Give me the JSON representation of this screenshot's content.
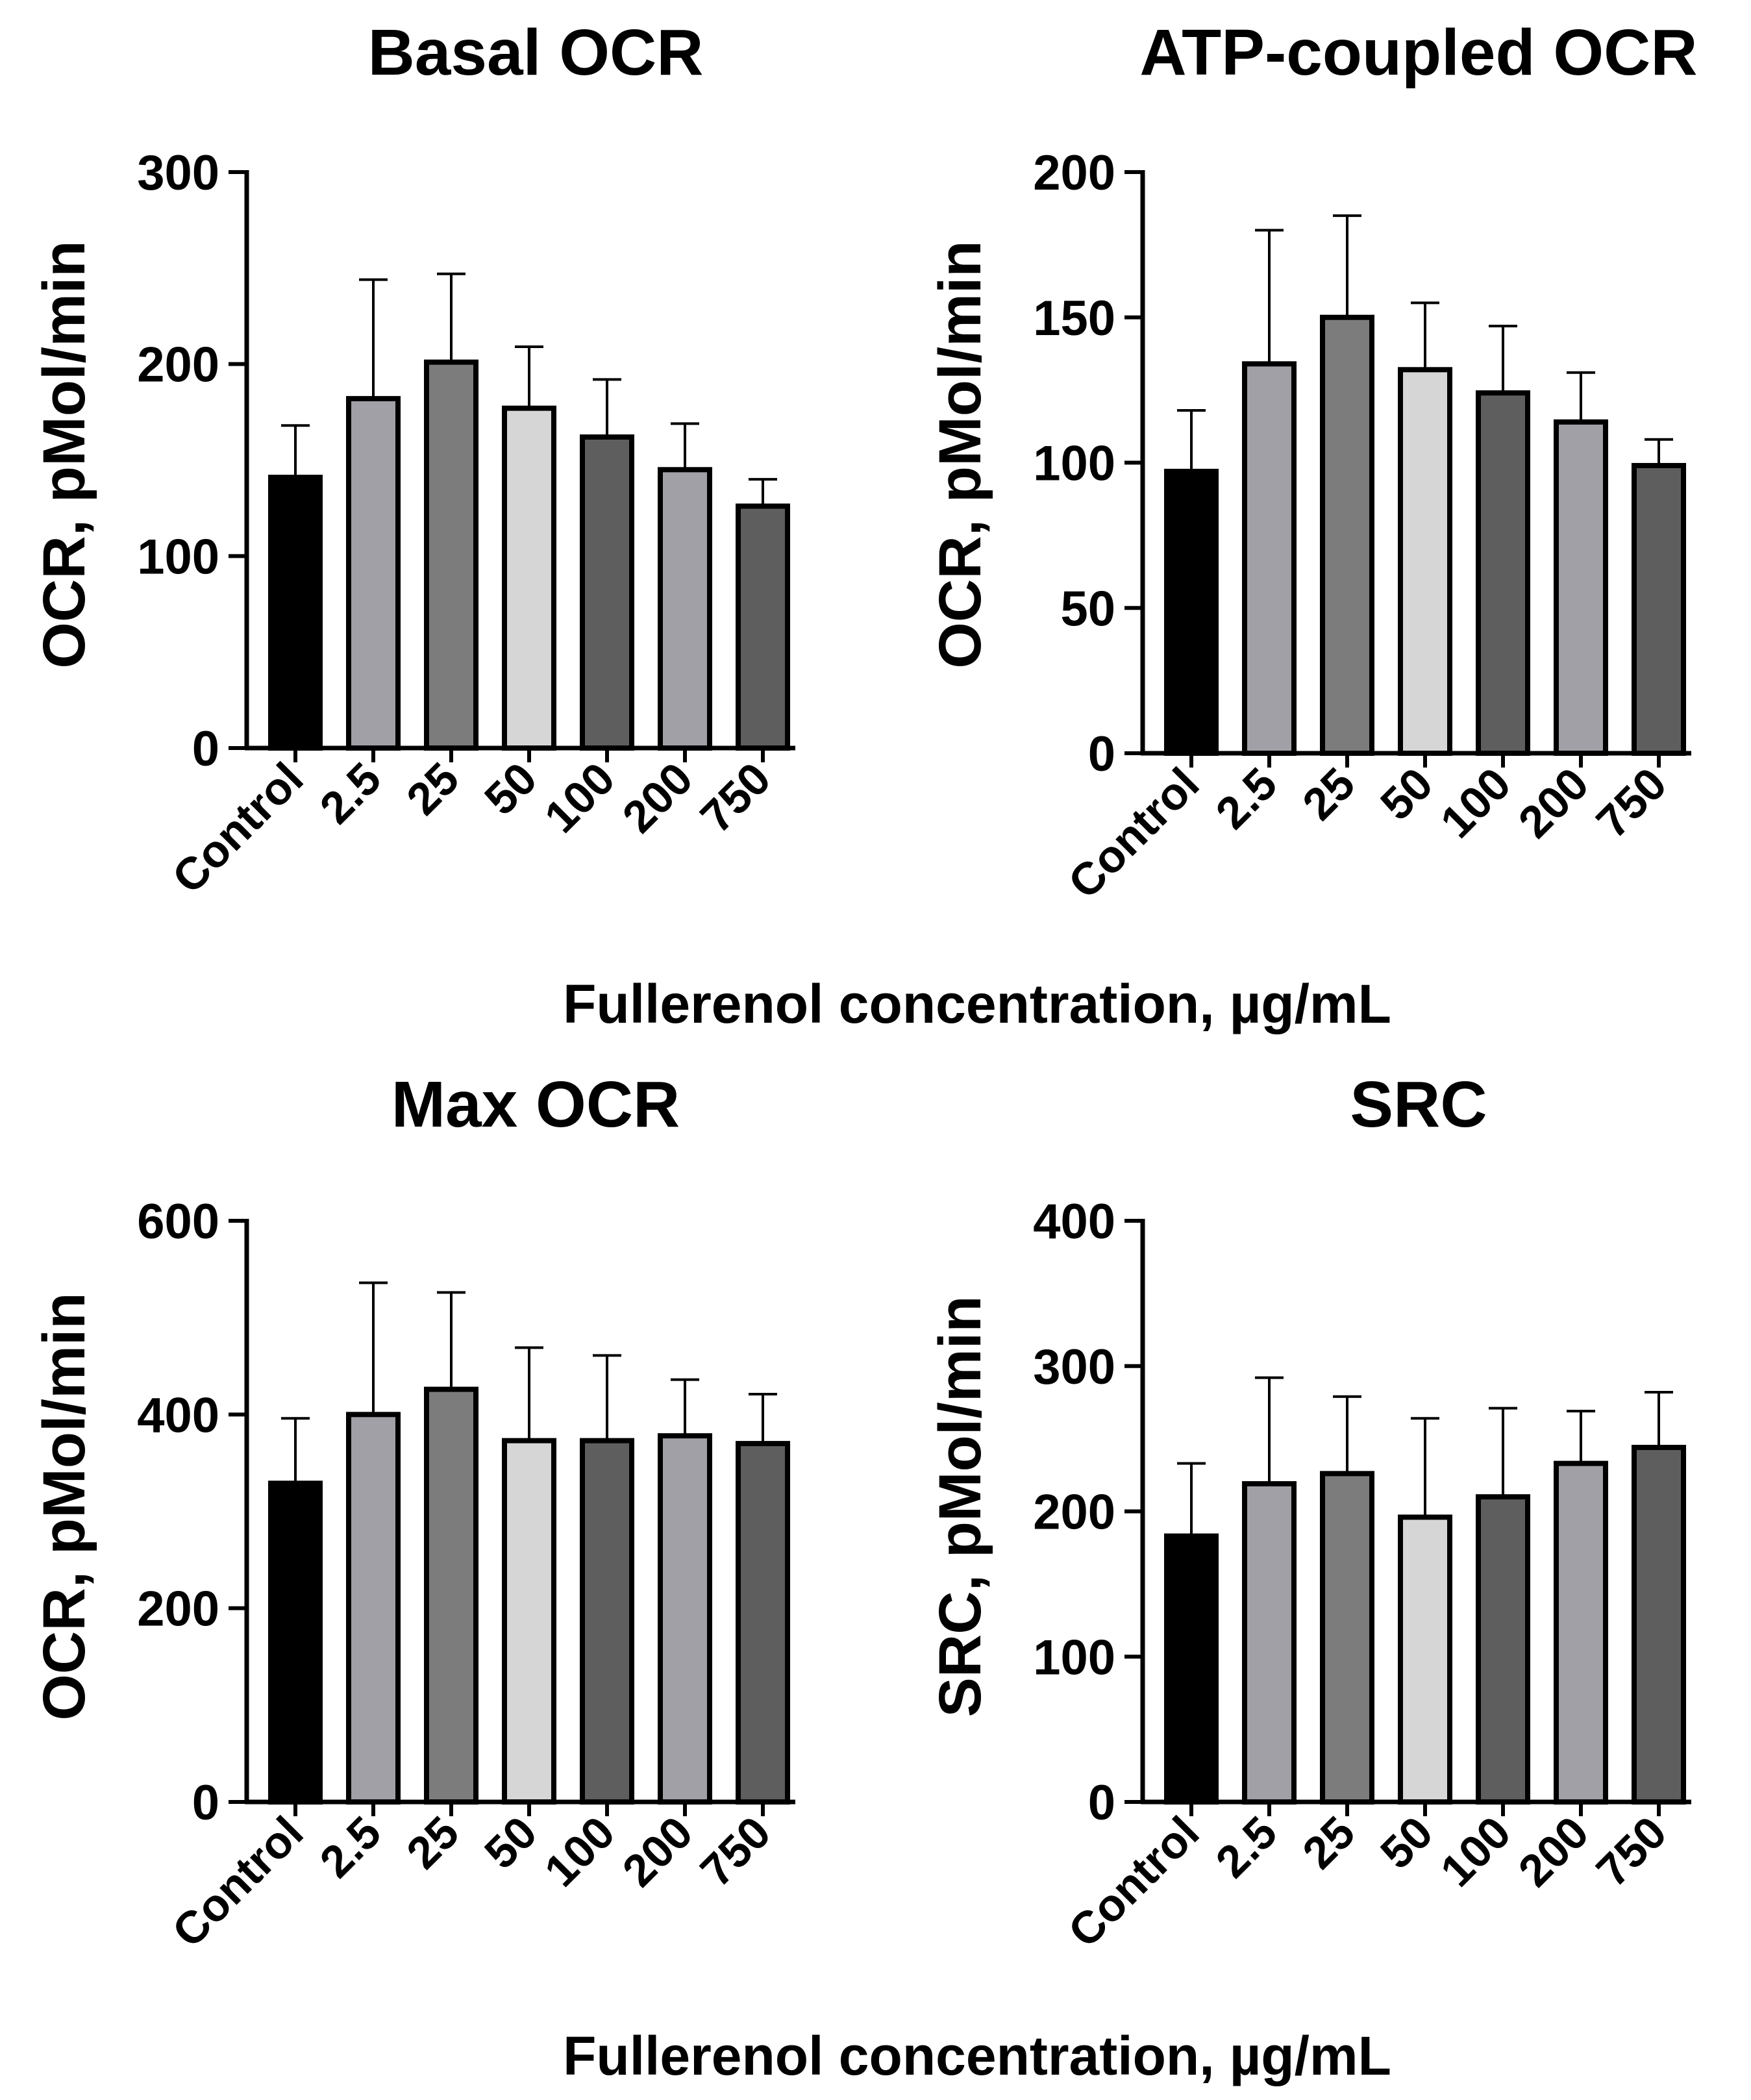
{
  "figure": {
    "xlabel_top": "Fullerenol concentration, µg/mL",
    "xlabel_bottom": "Fullerenol concentration, µg/mL"
  },
  "colors": {
    "Control": "#000000",
    "2.5": "#a0a0a6",
    "25": "#7c7c7c",
    "50": "#d6d6d6",
    "100": "#5e5e5e",
    "200": "#a0a0a6",
    "750": "#5e5e5e",
    "axis": "#000000",
    "errorbar": "#000000"
  },
  "chart_data": [
    {
      "type": "bar",
      "title": "Basal OCR",
      "ylabel": "OCR, pMol/min",
      "xlabel": "Fullerenol concentration, µg/mL",
      "categories": [
        "Control",
        "2.5",
        "25",
        "50",
        "100",
        "200",
        "750"
      ],
      "values": [
        141,
        182,
        201,
        177,
        162,
        145,
        126
      ],
      "errors": [
        27,
        62,
        46,
        32,
        30,
        24,
        14
      ],
      "ylim": [
        0,
        300
      ],
      "yticks": [
        0,
        100,
        200,
        300
      ]
    },
    {
      "type": "bar",
      "title": "ATP-coupled OCR",
      "ylabel": "OCR, pMol/min",
      "xlabel": "Fullerenol concentration, µg/mL",
      "categories": [
        "Control",
        "2.5",
        "25",
        "50",
        "100",
        "200",
        "750"
      ],
      "values": [
        97,
        134,
        150,
        132,
        124,
        114,
        99
      ],
      "errors": [
        21,
        46,
        35,
        23,
        23,
        17,
        9
      ],
      "ylim": [
        0,
        200
      ],
      "yticks": [
        0,
        50,
        100,
        150,
        200
      ]
    },
    {
      "type": "bar",
      "title": "Max OCR",
      "ylabel": "OCR, pMol/min",
      "xlabel": "Fullerenol concentration, µg/mL",
      "categories": [
        "Control",
        "2.5",
        "25",
        "50",
        "100",
        "200",
        "750"
      ],
      "values": [
        329,
        400,
        426,
        373,
        373,
        378,
        370
      ],
      "errors": [
        67,
        136,
        100,
        96,
        88,
        58,
        51
      ],
      "ylim": [
        0,
        600
      ],
      "yticks": [
        0,
        200,
        400,
        600
      ]
    },
    {
      "type": "bar",
      "title": "SRC",
      "ylabel": "SRC, pMol/min",
      "xlabel": "Fullerenol concentration, µg/mL",
      "categories": [
        "Control",
        "2.5",
        "25",
        "50",
        "100",
        "200",
        "750"
      ],
      "values": [
        183,
        219,
        226,
        196,
        210,
        233,
        244
      ],
      "errors": [
        50,
        73,
        53,
        68,
        61,
        36,
        38
      ],
      "ylim": [
        0,
        400
      ],
      "yticks": [
        0,
        100,
        200,
        300,
        400
      ]
    }
  ]
}
